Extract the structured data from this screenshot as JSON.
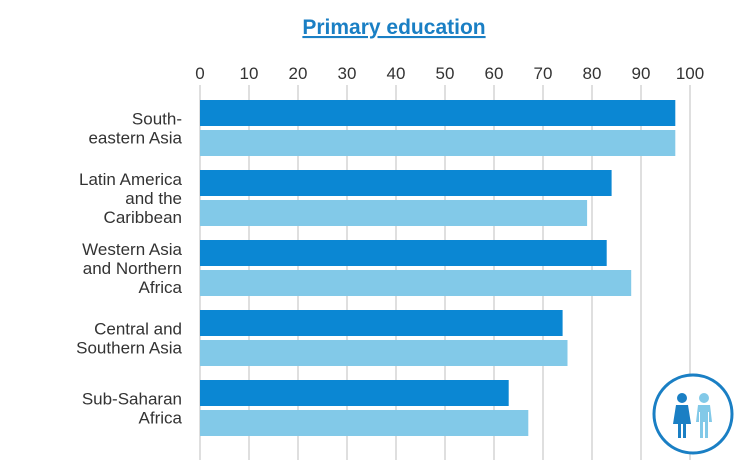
{
  "chart_data": {
    "type": "bar",
    "orientation": "horizontal",
    "title": "Primary education",
    "xlabel": "",
    "ylabel": "",
    "xlim": [
      0,
      100
    ],
    "x_ticks": [
      "0",
      "10",
      "20",
      "30",
      "40",
      "50",
      "60",
      "70",
      "80",
      "90",
      "100"
    ],
    "grid": true,
    "categories": [
      [
        "South-",
        "eastern Asia"
      ],
      [
        "Latin America",
        "and the",
        "Caribbean"
      ],
      [
        "Western Asia",
        "and Northern",
        "Africa"
      ],
      [
        "Central and",
        "Southern Asia"
      ],
      [
        "Sub-Saharan",
        "Africa"
      ]
    ],
    "series": [
      {
        "color": "#0b87d3",
        "values": [
          97,
          84,
          83,
          74,
          63
        ]
      },
      {
        "color": "#82c9e8",
        "values": [
          97,
          79,
          88,
          75,
          67
        ]
      }
    ],
    "icon": "girl-boy-icon",
    "icon_colors": {
      "ring": "#1a7fc4",
      "girl": "#1a7fc4",
      "boy": "#82c9e8"
    }
  }
}
